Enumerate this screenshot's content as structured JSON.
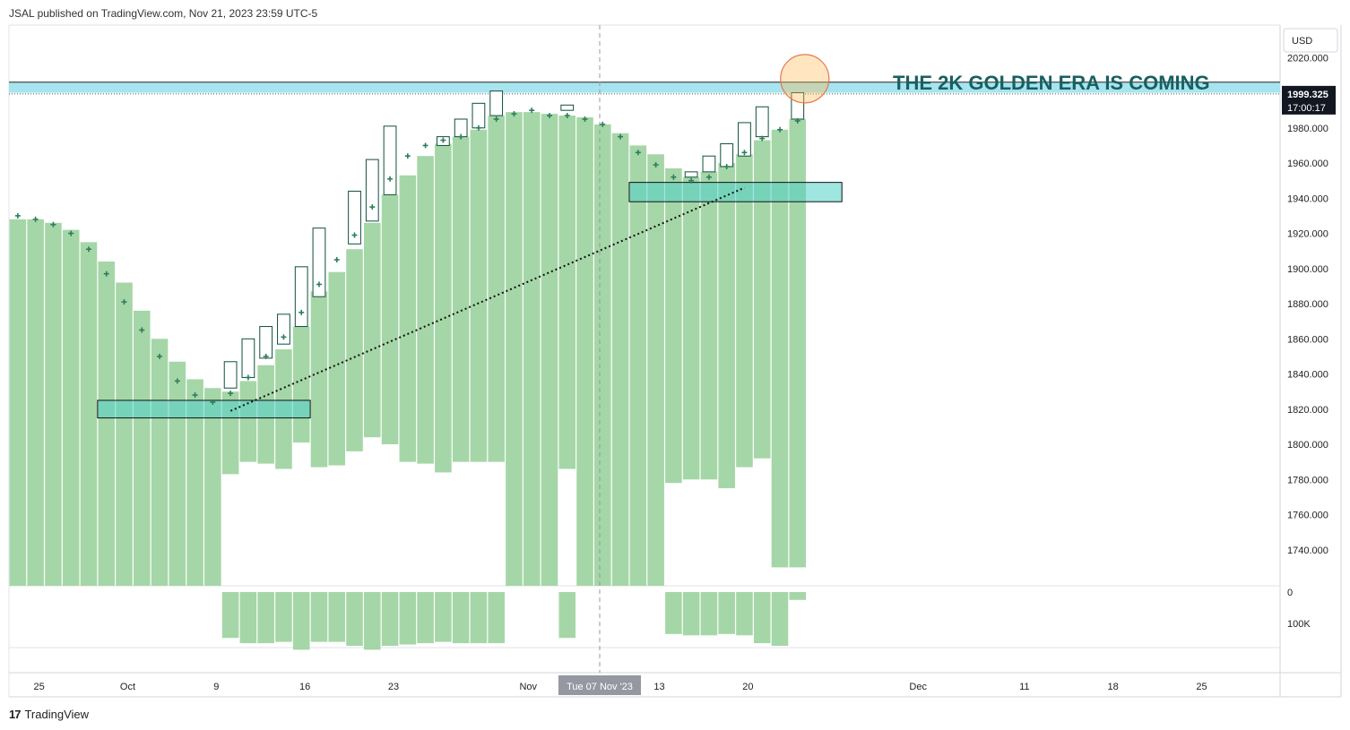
{
  "header": {
    "text": "JSAL published on TradingView.com, Nov 21, 2023 23:59 UTC-5"
  },
  "footer": {
    "logo": "17",
    "text": "TradingView"
  },
  "chart_data": {
    "type": "bar",
    "currency": "USD",
    "annotation": "THE 2K GOLDEN ERA IS COMING",
    "price_label": "1999.325",
    "countdown_label": "17:00:17",
    "cursor_date_label": "Tue 07 Nov '23",
    "price_axis": {
      "ticks": [
        "2020.000",
        "1980.000",
        "1960.000",
        "1940.000",
        "1920.000",
        "1900.000",
        "1880.000",
        "1860.000",
        "1840.000",
        "1820.000",
        "1800.000",
        "1780.000",
        "1760.000",
        "1740.000"
      ],
      "values": [
        2020,
        1980,
        1960,
        1940,
        1920,
        1900,
        1880,
        1860,
        1840,
        1820,
        1800,
        1780,
        1760,
        1740
      ],
      "range": [
        1719.5,
        2038.5
      ]
    },
    "volume_axis": {
      "ticks": [
        "0",
        "100K"
      ]
    },
    "date_axis": {
      "labels": [
        "25",
        "Oct",
        "9",
        "16",
        "23",
        "Nov",
        "13",
        "20",
        "Dec",
        "11",
        "18",
        "25"
      ]
    },
    "resistance_zone": [
      2000,
      2006
    ],
    "current_price": 1999.325,
    "support_zones": [
      {
        "from_day": 5,
        "to_day": 17,
        "low": 1815,
        "high": 1825
      },
      {
        "from_day": 35,
        "to_day": 47,
        "low": 1938,
        "high": 1949
      }
    ],
    "trendline": {
      "from": [
        12,
        1819
      ],
      "to": [
        41,
        1946
      ]
    },
    "highlight_circle": {
      "day": 44.5,
      "price": 2008
    },
    "bars": [
      {
        "top": 1928,
        "bottom": 1719.5
      },
      {
        "top": 1928,
        "bottom": 1719.5
      },
      {
        "top": 1926,
        "bottom": 1719.5
      },
      {
        "top": 1922,
        "bottom": 1719.5
      },
      {
        "top": 1915,
        "bottom": 1719.5
      },
      {
        "top": 1904,
        "bottom": 1719.5
      },
      {
        "top": 1892,
        "bottom": 1719.5
      },
      {
        "top": 1876,
        "bottom": 1719.5
      },
      {
        "top": 1860,
        "bottom": 1719.5
      },
      {
        "top": 1847,
        "bottom": 1719.5
      },
      {
        "top": 1837,
        "bottom": 1719.5
      },
      {
        "top": 1832,
        "bottom": 1719.5
      },
      {
        "top": 1830,
        "bottom": 1783
      },
      {
        "top": 1836,
        "bottom": 1790
      },
      {
        "top": 1845,
        "bottom": 1789
      },
      {
        "top": 1854,
        "bottom": 1786
      },
      {
        "top": 1867,
        "bottom": 1801
      },
      {
        "top": 1887,
        "bottom": 1787
      },
      {
        "top": 1898,
        "bottom": 1788
      },
      {
        "top": 1911,
        "bottom": 1796
      },
      {
        "top": 1926,
        "bottom": 1804
      },
      {
        "top": 1942,
        "bottom": 1800
      },
      {
        "top": 1953,
        "bottom": 1790
      },
      {
        "top": 1964,
        "bottom": 1789
      },
      {
        "top": 1971,
        "bottom": 1784
      },
      {
        "top": 1975,
        "bottom": 1790
      },
      {
        "top": 1979,
        "bottom": 1790
      },
      {
        "top": 1987,
        "bottom": 1790
      },
      {
        "top": 1989,
        "bottom": 1719.5
      },
      {
        "top": 1989,
        "bottom": 1719.5
      },
      {
        "top": 1988,
        "bottom": 1719.5
      },
      {
        "top": 1987,
        "bottom": 1786
      },
      {
        "top": 1986,
        "bottom": 1719.5
      },
      {
        "top": 1982,
        "bottom": 1719.5
      },
      {
        "top": 1977,
        "bottom": 1719.5
      },
      {
        "top": 1970,
        "bottom": 1719.5
      },
      {
        "top": 1965,
        "bottom": 1719.5
      },
      {
        "top": 1957,
        "bottom": 1778
      },
      {
        "top": 1952,
        "bottom": 1780
      },
      {
        "top": 1955,
        "bottom": 1780
      },
      {
        "top": 1960,
        "bottom": 1775
      },
      {
        "top": 1965,
        "bottom": 1787
      },
      {
        "top": 1973,
        "bottom": 1792
      },
      {
        "top": 1979,
        "bottom": 1730
      },
      {
        "top": 1985,
        "bottom": 1730
      }
    ],
    "candles": [
      {
        "day": 12,
        "open": 1832,
        "close": 1847
      },
      {
        "day": 13,
        "open": 1838,
        "close": 1860
      },
      {
        "day": 14,
        "open": 1849,
        "close": 1867
      },
      {
        "day": 15,
        "open": 1857,
        "close": 1874
      },
      {
        "day": 16,
        "open": 1867,
        "close": 1901
      },
      {
        "day": 17,
        "open": 1884,
        "close": 1923
      },
      {
        "day": 19,
        "open": 1914,
        "close": 1944
      },
      {
        "day": 20,
        "open": 1927,
        "close": 1962
      },
      {
        "day": 21,
        "open": 1942,
        "close": 1981
      },
      {
        "day": 24,
        "open": 1970,
        "close": 1975
      },
      {
        "day": 25,
        "open": 1975,
        "close": 1985
      },
      {
        "day": 26,
        "open": 1980,
        "close": 1994
      },
      {
        "day": 27,
        "open": 1987,
        "close": 2001
      },
      {
        "day": 31,
        "open": 1990,
        "close": 1993
      },
      {
        "day": 38,
        "open": 1952,
        "close": 1955
      },
      {
        "day": 39,
        "open": 1955,
        "close": 1964
      },
      {
        "day": 40,
        "open": 1958,
        "close": 1971
      },
      {
        "day": 41,
        "open": 1964,
        "close": 1983
      },
      {
        "day": 42,
        "open": 1975,
        "close": 1992
      },
      {
        "day": 44,
        "open": 1985,
        "close": 2000
      }
    ],
    "plus_marks": [
      {
        "day": 0,
        "price": 1930
      },
      {
        "day": 1,
        "price": 1928
      },
      {
        "day": 2,
        "price": 1925
      },
      {
        "day": 3,
        "price": 1920
      },
      {
        "day": 4,
        "price": 1911
      },
      {
        "day": 5,
        "price": 1897
      },
      {
        "day": 6,
        "price": 1881
      },
      {
        "day": 7,
        "price": 1865
      },
      {
        "day": 8,
        "price": 1850
      },
      {
        "day": 9,
        "price": 1836
      },
      {
        "day": 10,
        "price": 1828
      },
      {
        "day": 11,
        "price": 1824
      },
      {
        "day": 12,
        "price": 1829
      },
      {
        "day": 13,
        "price": 1838
      },
      {
        "day": 14,
        "price": 1850
      },
      {
        "day": 15,
        "price": 1861
      },
      {
        "day": 16,
        "price": 1875
      },
      {
        "day": 17,
        "price": 1891
      },
      {
        "day": 18,
        "price": 1905
      },
      {
        "day": 19,
        "price": 1919
      },
      {
        "day": 20,
        "price": 1935
      },
      {
        "day": 21,
        "price": 1951
      },
      {
        "day": 22,
        "price": 1964
      },
      {
        "day": 23,
        "price": 1970
      },
      {
        "day": 24,
        "price": 1973
      },
      {
        "day": 25,
        "price": 1975
      },
      {
        "day": 26,
        "price": 1980
      },
      {
        "day": 27,
        "price": 1985
      },
      {
        "day": 28,
        "price": 1988
      },
      {
        "day": 29,
        "price": 1990
      },
      {
        "day": 30,
        "price": 1987
      },
      {
        "day": 31,
        "price": 1987
      },
      {
        "day": 32,
        "price": 1985
      },
      {
        "day": 33,
        "price": 1982
      },
      {
        "day": 34,
        "price": 1975
      },
      {
        "day": 35,
        "price": 1966
      },
      {
        "day": 36,
        "price": 1959
      },
      {
        "day": 37,
        "price": 1952
      },
      {
        "day": 38,
        "price": 1950
      },
      {
        "day": 39,
        "price": 1952
      },
      {
        "day": 40,
        "price": 1958
      },
      {
        "day": 41,
        "price": 1966
      },
      {
        "day": 42,
        "price": 1974
      },
      {
        "day": 43,
        "price": 1979
      },
      {
        "day": 44,
        "price": 1984
      }
    ],
    "volume": [
      0,
      0,
      0,
      0,
      0,
      0,
      0,
      0,
      0,
      0,
      0,
      0,
      70,
      78,
      78,
      76,
      88,
      76,
      76,
      82,
      88,
      82,
      80,
      78,
      76,
      78,
      78,
      78,
      0,
      0,
      0,
      70,
      0,
      0,
      0,
      0,
      0,
      64,
      66,
      66,
      64,
      66,
      78,
      82,
      12
    ]
  }
}
